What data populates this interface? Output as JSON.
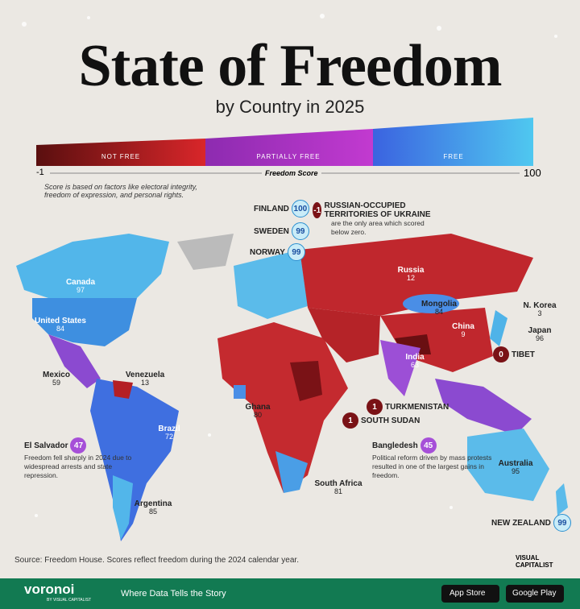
{
  "header": {
    "title": "State of Freedom",
    "subtitle": "by Country in 2025"
  },
  "legend": {
    "segments": [
      "NOT FREE",
      "PARTIALLY FREE",
      "FREE"
    ],
    "min": -1,
    "max": 100,
    "axis_label": "Freedom Score",
    "note": "Score is based on factors like electoral integrity, freedom of expression, and personal rights."
  },
  "map_labels": [
    {
      "name": "Canada",
      "score": 97
    },
    {
      "name": "United States",
      "score": 84
    },
    {
      "name": "Mexico",
      "score": 59
    },
    {
      "name": "Venezuela",
      "score": 13
    },
    {
      "name": "Brazil",
      "score": 72
    },
    {
      "name": "Argentina",
      "score": 85
    },
    {
      "name": "Ghana",
      "score": 80
    },
    {
      "name": "South Africa",
      "score": 81
    },
    {
      "name": "Russia",
      "score": 12
    },
    {
      "name": "Mongolia",
      "score": 84
    },
    {
      "name": "China",
      "score": 9
    },
    {
      "name": "India",
      "score": 63
    },
    {
      "name": "Australia",
      "score": 95
    },
    {
      "name": "N. Korea",
      "score": 3
    },
    {
      "name": "Japan",
      "score": 96
    }
  ],
  "callouts": [
    {
      "name": "FINLAND",
      "score": 100
    },
    {
      "name": "SWEDEN",
      "score": 99
    },
    {
      "name": "NORWAY",
      "score": 99
    },
    {
      "name": "RUSSIAN-OCCUPIED TERRITORIES OF UKRAINE",
      "score": -1,
      "note": "are the only area which scored below zero."
    },
    {
      "name": "TIBET",
      "score": 0
    },
    {
      "name": "TURKMENISTAN",
      "score": 1
    },
    {
      "name": "SOUTH SUDAN",
      "score": 1
    },
    {
      "name": "El Salvador",
      "score": 47,
      "note": "Freedom fell sharply in 2024 due to widespread arrests and state repression."
    },
    {
      "name": "Bangledesh",
      "score": 45,
      "note": "Political reform driven by mass protests resulted in one of the largest gains in freedom."
    },
    {
      "name": "NEW ZEALAND",
      "score": 99
    }
  ],
  "source": "Source: Freedom House. Scores reflect freedom during the 2024 calendar year.",
  "brand": {
    "logo": "VISUAL CAPITALIST",
    "name": "voronoi",
    "sub": "BY VISUAL CAPITALIST",
    "tagline": "Where Data Tells the Story",
    "store1": "App Store",
    "store2": "Google Play"
  }
}
